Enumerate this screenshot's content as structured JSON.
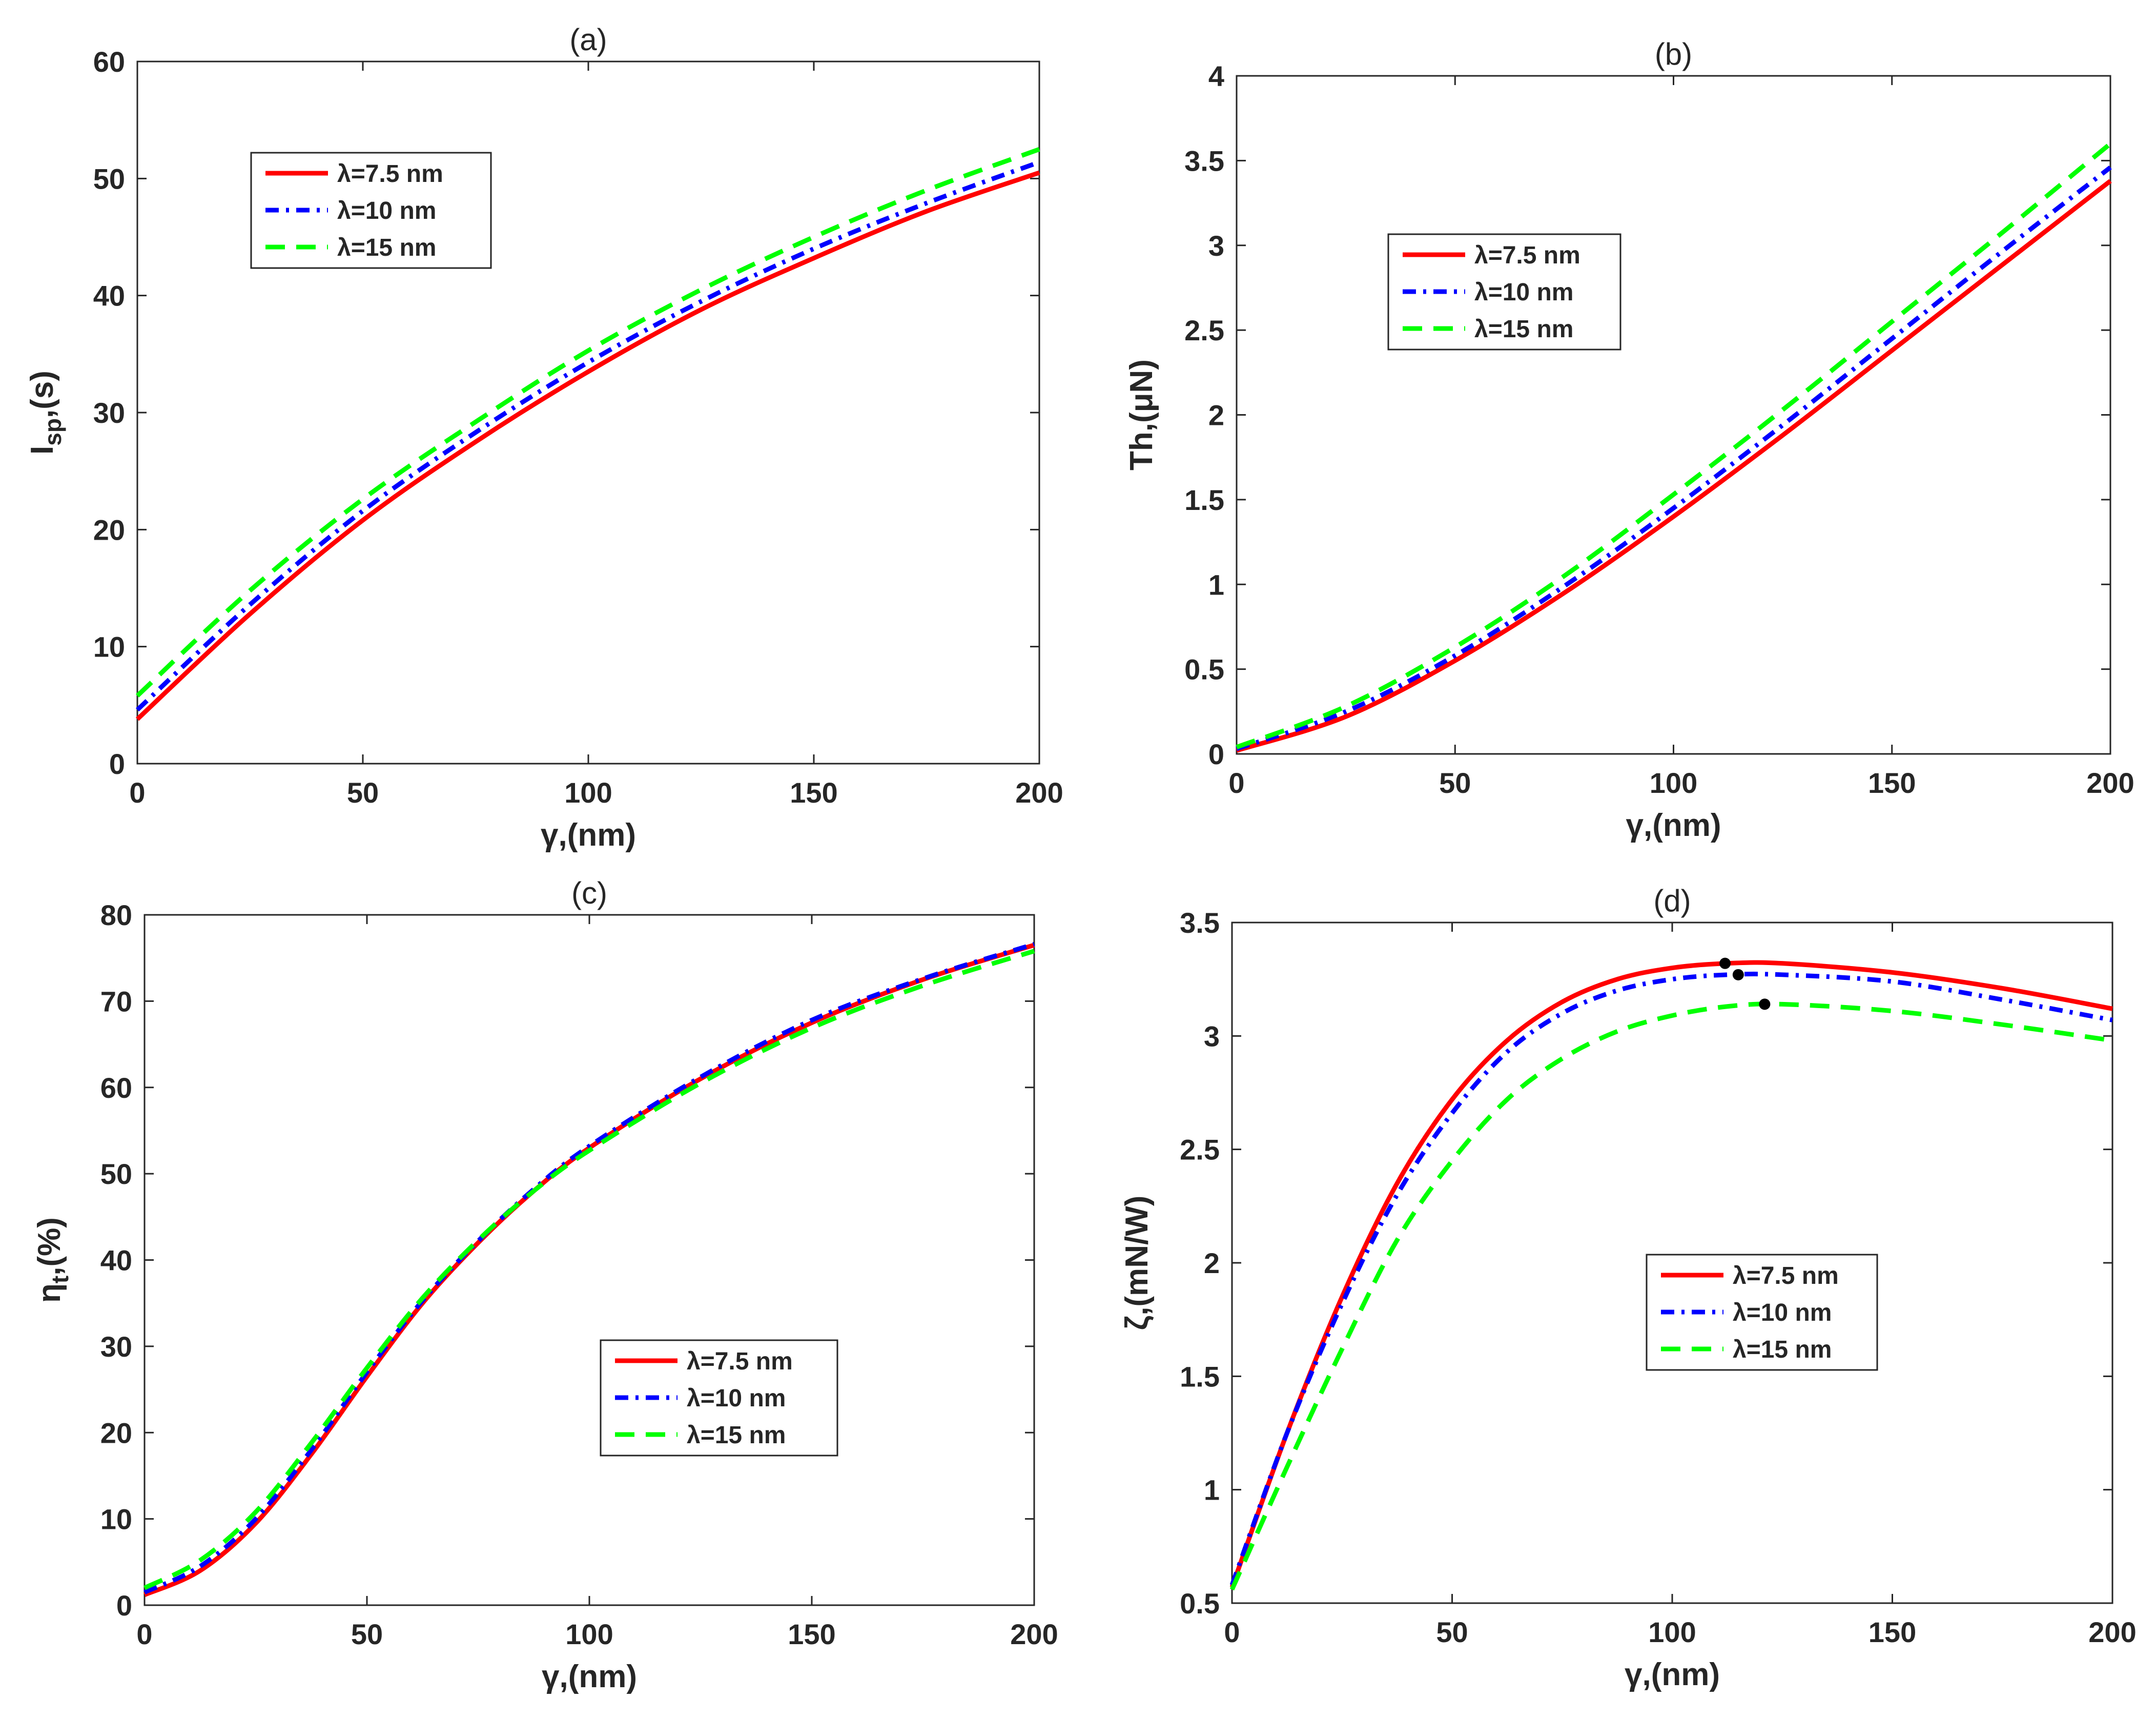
{
  "colors": {
    "red": "#ff0000",
    "blue": "#0000ff",
    "green": "#00ff00",
    "black": "#000000",
    "axis": "#262626"
  },
  "chart_data": [
    {
      "type": "line",
      "title": "(a)",
      "xlabel": "γ,(nm)",
      "ylabel": {
        "main": "I",
        "sub": "sp",
        "rest": ",(s)"
      },
      "xlim": [
        0,
        200
      ],
      "ylim": [
        0,
        60
      ],
      "xticks": [
        "0",
        "50",
        "100",
        "150",
        "200"
      ],
      "yticks": [
        "0",
        "10",
        "20",
        "30",
        "40",
        "50",
        "60"
      ],
      "legend_position": "upper-left",
      "x": [
        0,
        25,
        50,
        75,
        100,
        125,
        150,
        175,
        200
      ],
      "series": [
        {
          "name": "λ=7.5 nm",
          "color": "red",
          "style": "solid",
          "values": [
            3.8,
            12.8,
            20.8,
            27.5,
            33.5,
            38.8,
            43.2,
            47.2,
            50.5
          ]
        },
        {
          "name": "λ=10 nm",
          "color": "blue",
          "style": "dashdot",
          "values": [
            4.6,
            13.6,
            21.6,
            28.3,
            34.3,
            39.5,
            44.0,
            47.9,
            51.4
          ]
        },
        {
          "name": "λ=15 nm",
          "color": "green",
          "style": "dashed",
          "values": [
            5.8,
            14.8,
            22.6,
            29.2,
            35.3,
            40.5,
            45.0,
            49.0,
            52.5
          ]
        }
      ]
    },
    {
      "type": "line",
      "title": "(b)",
      "xlabel": "γ,(nm)",
      "ylabel": {
        "main": "Th,(μN)",
        "sub": "",
        "rest": ""
      },
      "xlim": [
        0,
        200
      ],
      "ylim": [
        0,
        4
      ],
      "xticks": [
        "0",
        "50",
        "100",
        "150",
        "200"
      ],
      "yticks": [
        "0",
        "0.5",
        "1",
        "1.5",
        "2",
        "2.5",
        "3",
        "3.5",
        "4"
      ],
      "legend_position": "upper-left",
      "x": [
        0,
        25,
        50,
        75,
        100,
        125,
        150,
        175,
        200
      ],
      "series": [
        {
          "name": "λ=7.5 nm",
          "color": "red",
          "style": "solid",
          "values": [
            0.02,
            0.22,
            0.55,
            0.95,
            1.4,
            1.88,
            2.38,
            2.88,
            3.38
          ]
        },
        {
          "name": "λ=10 nm",
          "color": "blue",
          "style": "dashdot",
          "values": [
            0.03,
            0.25,
            0.58,
            0.99,
            1.45,
            1.94,
            2.45,
            2.96,
            3.46
          ]
        },
        {
          "name": "λ=15 nm",
          "color": "green",
          "style": "dashed",
          "values": [
            0.04,
            0.28,
            0.63,
            1.05,
            1.53,
            2.03,
            2.55,
            3.07,
            3.6
          ]
        }
      ]
    },
    {
      "type": "line",
      "title": "(c)",
      "xlabel": "γ,(nm)",
      "ylabel": {
        "main": "η",
        "sub": "t",
        "rest": ",(%)"
      },
      "xlim": [
        0,
        200
      ],
      "ylim": [
        0,
        80
      ],
      "xticks": [
        "0",
        "50",
        "100",
        "150",
        "200"
      ],
      "yticks": [
        "0",
        "10",
        "20",
        "30",
        "40",
        "50",
        "60",
        "70",
        "80"
      ],
      "legend_position": "lower-right",
      "x": [
        0,
        12.5,
        25,
        37.5,
        50,
        62.5,
        75,
        87.5,
        100,
        125,
        150,
        175,
        200
      ],
      "series": [
        {
          "name": "λ=7.5 nm",
          "color": "red",
          "style": "solid",
          "values": [
            1.2,
            4.0,
            9.5,
            17.5,
            26.5,
            35.0,
            42.0,
            48.0,
            53.0,
            61.0,
            67.5,
            72.5,
            76.5
          ]
        },
        {
          "name": "λ=10 nm",
          "color": "blue",
          "style": "dashdot",
          "values": [
            1.5,
            4.5,
            10.0,
            18.0,
            27.0,
            35.3,
            42.2,
            48.2,
            53.2,
            61.2,
            67.8,
            72.6,
            76.6
          ]
        },
        {
          "name": "λ=15 nm",
          "color": "green",
          "style": "dashed",
          "values": [
            2.0,
            5.2,
            10.8,
            18.8,
            27.5,
            35.6,
            42.3,
            48.0,
            52.7,
            60.5,
            66.9,
            71.8,
            75.8
          ]
        }
      ]
    },
    {
      "type": "line",
      "title": "(d)",
      "xlabel": "γ,(nm)",
      "ylabel": {
        "main": "ζ,(mN/W)",
        "sub": "",
        "rest": ""
      },
      "xlim": [
        0,
        200
      ],
      "ylim": [
        0.5,
        3.5
      ],
      "xticks": [
        "0",
        "50",
        "100",
        "150",
        "200"
      ],
      "yticks": [
        "0.5",
        "1",
        "1.5",
        "2",
        "2.5",
        "3",
        "3.5"
      ],
      "legend_position": "center-right",
      "x": [
        0,
        12.5,
        25,
        37.5,
        50,
        62.5,
        75,
        87.5,
        100,
        112.5,
        125,
        150,
        175,
        200
      ],
      "series": [
        {
          "name": "λ=7.5 nm",
          "color": "red",
          "style": "solid",
          "values": [
            0.57,
            1.25,
            1.85,
            2.35,
            2.72,
            2.98,
            3.15,
            3.25,
            3.3,
            3.32,
            3.32,
            3.28,
            3.21,
            3.12
          ]
        },
        {
          "name": "λ=10 nm",
          "color": "blue",
          "style": "dashdot",
          "values": [
            0.58,
            1.25,
            1.82,
            2.3,
            2.66,
            2.93,
            3.1,
            3.2,
            3.25,
            3.27,
            3.27,
            3.24,
            3.16,
            3.07
          ]
        },
        {
          "name": "λ=15 nm",
          "color": "green",
          "style": "dashed",
          "values": [
            0.56,
            1.1,
            1.62,
            2.1,
            2.45,
            2.72,
            2.9,
            3.02,
            3.09,
            3.13,
            3.14,
            3.11,
            3.05,
            2.98
          ]
        }
      ],
      "markers": [
        {
          "x": 112,
          "y": 3.32
        },
        {
          "x": 115,
          "y": 3.27
        },
        {
          "x": 121,
          "y": 3.14
        }
      ]
    }
  ]
}
